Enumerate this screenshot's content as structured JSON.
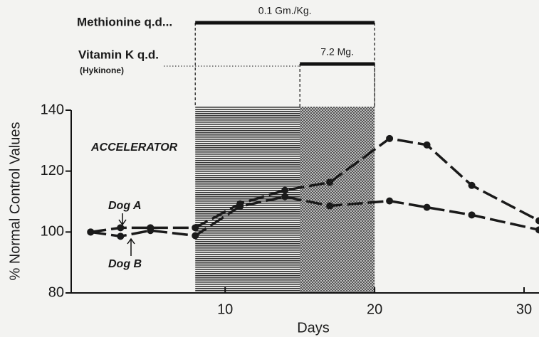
{
  "chart_data": {
    "type": "line",
    "x_label": "Days",
    "y_label": "% Normal Control Values",
    "xlim": [
      -0.3,
      31
    ],
    "xticks": [
      10,
      20,
      30
    ],
    "ylim": [
      80,
      140
    ],
    "yticks": [
      80,
      100,
      120,
      140
    ],
    "x": [
      1,
      3,
      5,
      8,
      11,
      14,
      17,
      21,
      23.5,
      26.5,
      31
    ],
    "series": [
      {
        "name": "Dog A",
        "color": "#1a1a1a",
        "values": [
          100,
          101.4,
          101.4,
          101.4,
          109.3,
          113.7,
          116.3,
          130.7,
          128.6,
          115.3,
          103.7
        ]
      },
      {
        "name": "Dog B",
        "color": "#1a1a1a",
        "values": [
          100,
          98.6,
          100.5,
          98.8,
          108.4,
          111.6,
          108.6,
          110.2,
          108.1,
          105.6,
          100.7
        ]
      }
    ],
    "annotation": "ACCELERATOR",
    "treatments": [
      {
        "label": "Methionine q.d...",
        "dose": "0.1 Gm./Kg.",
        "start": 8,
        "end": 20
      },
      {
        "label": "Vitamin K q.d.",
        "sublabel": "(Hykinone)",
        "dose": "7.2 Mg.",
        "start": 15,
        "end": 20
      }
    ]
  }
}
